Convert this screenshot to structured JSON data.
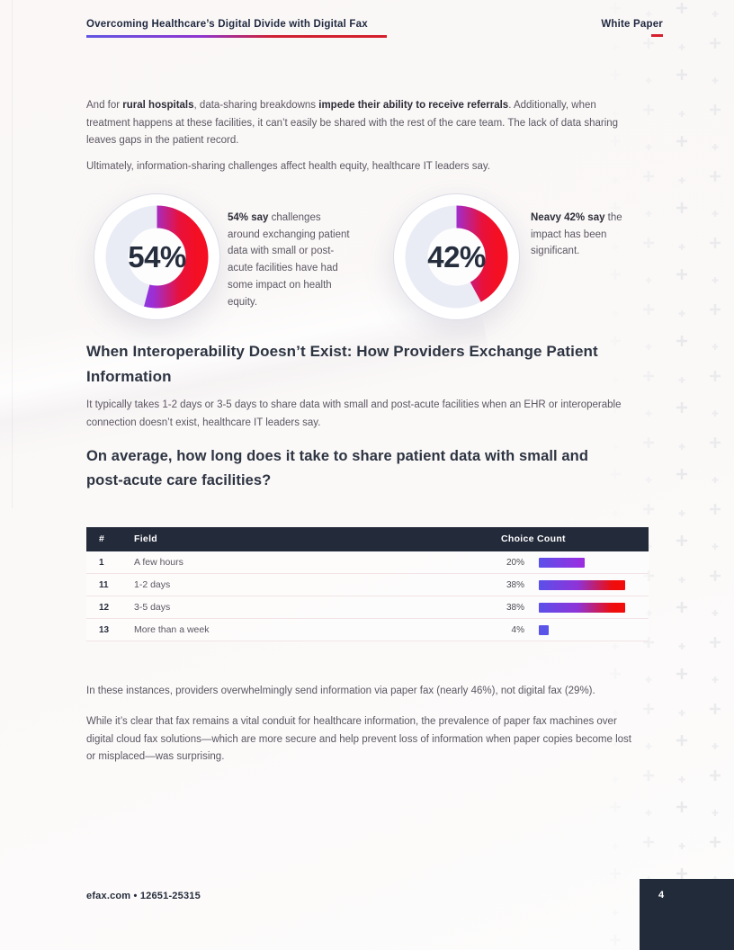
{
  "header": {
    "title": "Overcoming Healthcare’s Digital Divide with Digital Fax",
    "doc_type": "White Paper"
  },
  "intro": {
    "p1": [
      {
        "t": "And for ",
        "b": false
      },
      {
        "t": "rural hospitals",
        "b": true
      },
      {
        "t": ", data-sharing breakdowns ",
        "b": false
      },
      {
        "t": "impede their ability to receive referrals",
        "b": true
      },
      {
        "t": ". Additionally, when treatment happens at these facilities, it can’t easily be shared with the rest of the care team. The lack of data sharing leaves gaps in the patient record.",
        "b": false
      }
    ],
    "p2": "Ultimately, information-sharing challenges affect health equity, healthcare IT leaders say."
  },
  "stats": [
    {
      "value": "54%",
      "percent": 54,
      "desc": [
        {
          "t": "54% say",
          "b": true
        },
        {
          "t": " challenges around exchanging patient data with small or post-acute facilities have had some impact on health equity.",
          "b": false
        }
      ]
    },
    {
      "value": "42%",
      "percent": 42,
      "desc": [
        {
          "t": "Neavy 42% say",
          "b": true
        },
        {
          "t": " the impact has been significant.",
          "b": false
        }
      ]
    }
  ],
  "section": {
    "heading": "When Interoperability Doesn’t Exist: How Providers Exchange Patient Information",
    "body": "It typically takes 1-2 days or 3-5 days to share data with small and post-acute facilities when an EHR or interoperable connection doesn’t exist, healthcare IT leaders say.",
    "question": "On average, how long does it take to share patient data with small and post-acute care facilities?"
  },
  "table": {
    "columns": [
      "#",
      "Field",
      "Choice Count"
    ],
    "rows": [
      {
        "num": "1",
        "field": "A few hours",
        "percent": "20%",
        "value": 20
      },
      {
        "num": "11",
        "field": "1-2 days",
        "percent": "38%",
        "value": 38
      },
      {
        "num": "12",
        "field": "3-5 days",
        "percent": "38%",
        "value": 38
      },
      {
        "num": "13",
        "field": "More than a week",
        "percent": "4%",
        "value": 4
      }
    ]
  },
  "outro": {
    "p1": "In these instances, providers overwhelmingly send information via paper fax (nearly 46%), not digital fax (29%).",
    "p2": "While it’s clear that fax remains a vital conduit for healthcare information, the prevalence of paper fax machines over digital cloud fax solutions—which are more secure and help prevent loss of information when paper copies become lost or misplaced—was surprising."
  },
  "footer": {
    "left": "efax.com • 12651-25315",
    "page": "4"
  },
  "chart_data": [
    {
      "type": "pie",
      "subtype": "donut-gauge",
      "values": [
        54,
        46
      ],
      "labels": [
        "54% say some impact on health equity",
        "other"
      ],
      "title": "54% say challenges around exchanging patient data with small or post-acute facilities have had some impact on health equity."
    },
    {
      "type": "pie",
      "subtype": "donut-gauge",
      "values": [
        42,
        58
      ],
      "labels": [
        "Neavy 42% say impact has been significant",
        "other"
      ],
      "title": "Neavy 42% say the impact has been significant."
    },
    {
      "type": "bar",
      "title": "On average, how long does it take to share patient data with small and post-acute care facilities?",
      "categories": [
        "A few hours",
        "1-2 days",
        "3-5 days",
        "More than a week"
      ],
      "values": [
        20,
        38,
        38,
        4
      ],
      "unit": "%",
      "xlabel": "Choice Count",
      "ylabel": "Field",
      "legend": false,
      "orientation": "horizontal"
    }
  ],
  "colors": {
    "navy": "#232a3a",
    "accent_red": "#d6202e",
    "gradient_blue": "#5b50ea",
    "gradient_purple": "#9c2fd6",
    "gradient_red": "#ee0d21",
    "donut_track": "#eaecf5",
    "body_text": "#5b5662",
    "heading_text": "#2d3442",
    "page_bg": "#fbf8f7",
    "row_separator": "#f2e4e6"
  }
}
